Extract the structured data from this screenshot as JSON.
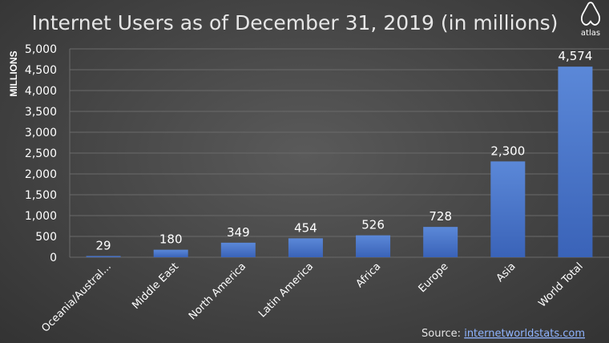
{
  "colors": {
    "bar_top": "#5b88d8",
    "bar_bottom": "#3a63b8",
    "grid": "#6a6a6a",
    "text": "#ffffff",
    "link": "#8fb4ff"
  },
  "logo": {
    "icon": "atlas-logo-icon",
    "text": "atlas"
  },
  "source": {
    "label": "Source: ",
    "link_text": "internetworldstats.com"
  },
  "chart_data": {
    "type": "bar",
    "title": "Internet Users as of December 31, 2019 (in millions)",
    "ylabel": "MILLIONS",
    "xlabel": "",
    "categories": [
      "Oceania/Austral...",
      "Middle East",
      "North America",
      "Latin America",
      "Africa",
      "Europe",
      "Asia",
      "World Total"
    ],
    "values": [
      29,
      180,
      349,
      454,
      526,
      728,
      2300,
      4574
    ],
    "value_labels": [
      "29",
      "180",
      "349",
      "454",
      "526",
      "728",
      "2,300",
      "4,574"
    ],
    "ylim": [
      0,
      5000
    ],
    "yticks": [
      0,
      500,
      1000,
      1500,
      2000,
      2500,
      3000,
      3500,
      4000,
      4500,
      5000
    ],
    "ytick_labels": [
      "0",
      "500",
      "1,000",
      "1,500",
      "2,000",
      "2,500",
      "3,000",
      "3,500",
      "4,000",
      "4,500",
      "5,000"
    ],
    "grid": true,
    "legend": "none"
  }
}
